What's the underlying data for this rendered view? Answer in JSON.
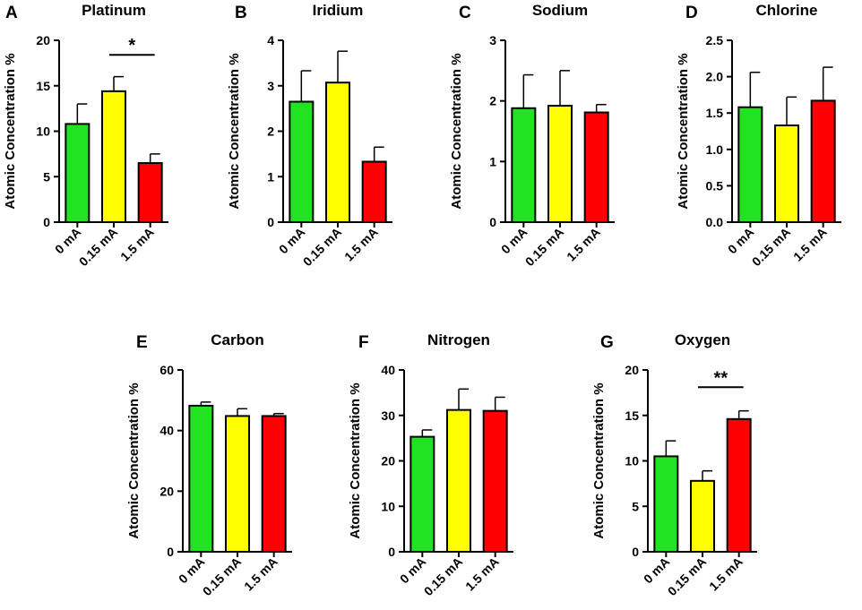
{
  "chart_data": [
    {
      "panel": "A",
      "type": "bar",
      "title": "Platinum",
      "xlabel": "",
      "ylabel": "Atomic Concentration %",
      "categories": [
        "0 mA",
        "0.15 mA",
        "1.5 mA"
      ],
      "values": [
        10.8,
        14.4,
        6.5
      ],
      "errors": [
        2.2,
        1.6,
        1.0
      ],
      "colors": [
        "#22e322",
        "#ffff00",
        "#ff0000"
      ],
      "ylim": [
        0,
        20
      ],
      "yticks": [
        "0",
        "5",
        "10",
        "15",
        "20"
      ],
      "significance": [
        {
          "from": 1,
          "to": 2,
          "label": "*",
          "y": 18.4
        }
      ]
    },
    {
      "panel": "B",
      "type": "bar",
      "title": "Iridium",
      "xlabel": "",
      "ylabel": "Atomic Concentration %",
      "categories": [
        "0 mA",
        "0.15 mA",
        "1.5 mA"
      ],
      "values": [
        2.65,
        3.07,
        1.33
      ],
      "errors": [
        0.68,
        0.69,
        0.32
      ],
      "colors": [
        "#22e322",
        "#ffff00",
        "#ff0000"
      ],
      "ylim": [
        0,
        4
      ],
      "yticks": [
        "0",
        "1",
        "2",
        "3",
        "4"
      ],
      "significance": []
    },
    {
      "panel": "C",
      "type": "bar",
      "title": "Sodium",
      "xlabel": "",
      "ylabel": "Atomic Concentration %",
      "categories": [
        "0 mA",
        "0.15 mA",
        "1.5 mA"
      ],
      "values": [
        1.88,
        1.92,
        1.81
      ],
      "errors": [
        0.55,
        0.58,
        0.13
      ],
      "colors": [
        "#22e322",
        "#ffff00",
        "#ff0000"
      ],
      "ylim": [
        0,
        3
      ],
      "yticks": [
        "0",
        "1",
        "2",
        "3"
      ],
      "significance": []
    },
    {
      "panel": "D",
      "type": "bar",
      "title": "Chlorine",
      "xlabel": "",
      "ylabel": "Atomic Concentration %",
      "categories": [
        "0 mA",
        "0.15 mA",
        "1.5 mA"
      ],
      "values": [
        1.58,
        1.33,
        1.67
      ],
      "errors": [
        0.48,
        0.39,
        0.46
      ],
      "colors": [
        "#22e322",
        "#ffff00",
        "#ff0000"
      ],
      "ylim": [
        0,
        2.5
      ],
      "yticks": [
        "0.0",
        "0.5",
        "1.0",
        "1.5",
        "2.0",
        "2.5"
      ],
      "significance": []
    },
    {
      "panel": "E",
      "type": "bar",
      "title": "Carbon",
      "xlabel": "",
      "ylabel": "Atomic Concentration %",
      "categories": [
        "0 mA",
        "0.15 mA",
        "1.5 mA"
      ],
      "values": [
        48.2,
        44.8,
        44.8
      ],
      "errors": [
        1.2,
        2.4,
        0.8
      ],
      "colors": [
        "#22e322",
        "#ffff00",
        "#ff0000"
      ],
      "ylim": [
        0,
        60
      ],
      "yticks": [
        "0",
        "20",
        "40",
        "60"
      ],
      "significance": []
    },
    {
      "panel": "F",
      "type": "bar",
      "title": "Nitrogen",
      "xlabel": "",
      "ylabel": "Atomic Concentration %",
      "categories": [
        "0 mA",
        "0.15 mA",
        "1.5 mA"
      ],
      "values": [
        25.3,
        31.2,
        31.0
      ],
      "errors": [
        1.5,
        4.6,
        3.0
      ],
      "colors": [
        "#22e322",
        "#ffff00",
        "#ff0000"
      ],
      "ylim": [
        0,
        40
      ],
      "yticks": [
        "0",
        "10",
        "20",
        "30",
        "40"
      ],
      "significance": []
    },
    {
      "panel": "G",
      "type": "bar",
      "title": "Oxygen",
      "xlabel": "",
      "ylabel": "Atomic Concentration %",
      "categories": [
        "0 mA",
        "0.15 mA",
        "1.5 mA"
      ],
      "values": [
        10.5,
        7.8,
        14.6
      ],
      "errors": [
        1.7,
        1.1,
        0.9
      ],
      "colors": [
        "#22e322",
        "#ffff00",
        "#ff0000"
      ],
      "ylim": [
        0,
        20
      ],
      "yticks": [
        "0",
        "5",
        "10",
        "15",
        "20"
      ],
      "significance": [
        {
          "from": 1,
          "to": 2,
          "label": "**",
          "y": 18.1
        }
      ]
    }
  ]
}
